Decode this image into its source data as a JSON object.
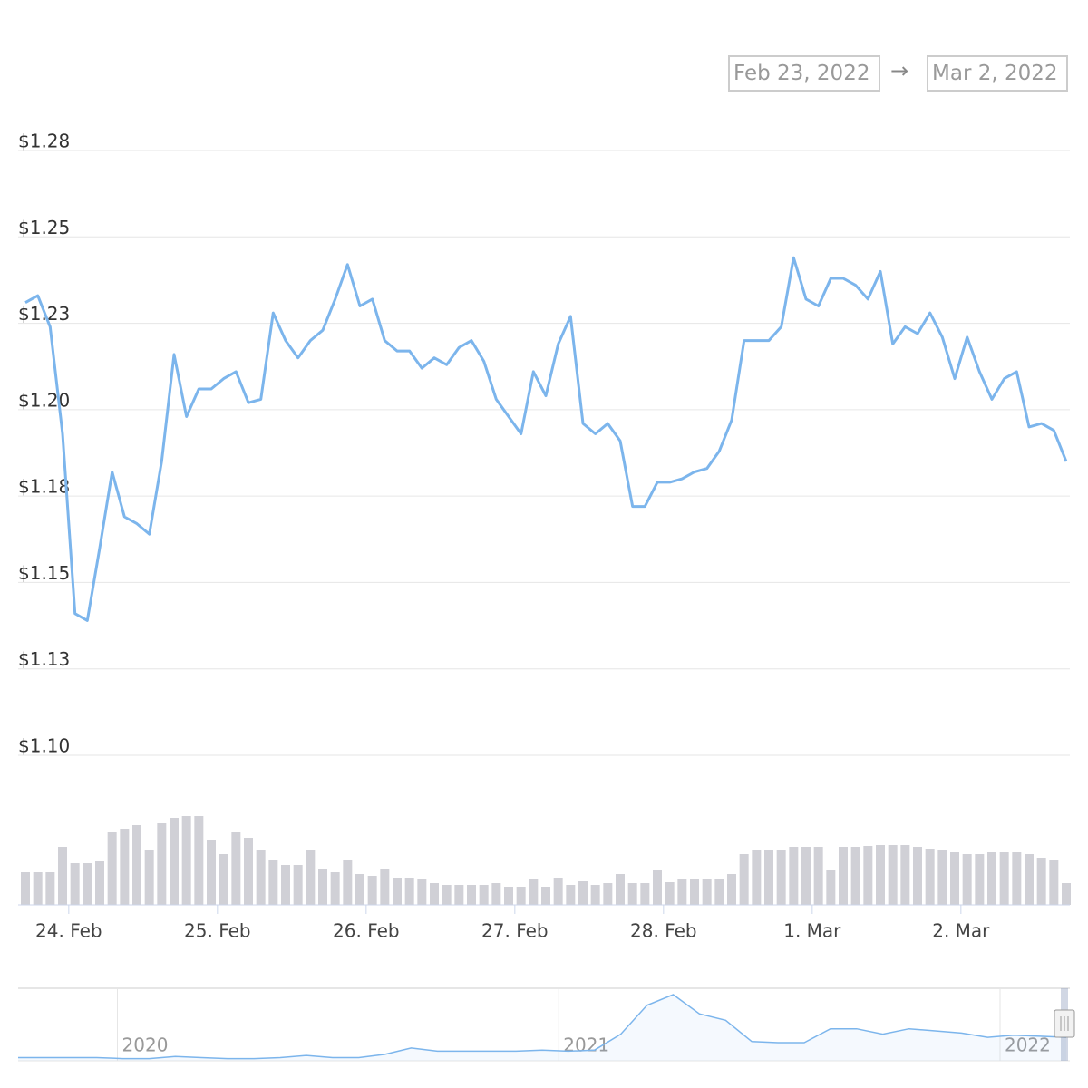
{
  "chart_data": {
    "type": "line",
    "date_range": {
      "from": "Feb 23, 2022",
      "separator": "→",
      "to": "Mar 2, 2022"
    },
    "series": [
      {
        "color": "#7cb5ec",
        "values": [
          1.231,
          1.233,
          1.224,
          1.193,
          1.141,
          1.139,
          1.16,
          1.182,
          1.169,
          1.167,
          1.164,
          1.185,
          1.216,
          1.198,
          1.206,
          1.206,
          1.209,
          1.211,
          1.202,
          1.203,
          1.228,
          1.22,
          1.215,
          1.22,
          1.223,
          1.232,
          1.242,
          1.23,
          1.232,
          1.22,
          1.217,
          1.217,
          1.212,
          1.215,
          1.213,
          1.218,
          1.22,
          1.214,
          1.203,
          1.198,
          1.193,
          1.211,
          1.204,
          1.219,
          1.227,
          1.196,
          1.193,
          1.196,
          1.191,
          1.172,
          1.172,
          1.179,
          1.179,
          1.18,
          1.182,
          1.183,
          1.188,
          1.197,
          1.22,
          1.22,
          1.22,
          1.224,
          1.244,
          1.232,
          1.23,
          1.238,
          1.238,
          1.236,
          1.232,
          1.24,
          1.219,
          1.224,
          1.222,
          1.228,
          1.221,
          1.209,
          1.221,
          1.211,
          1.203,
          1.209,
          1.211,
          1.195,
          1.196,
          1.194,
          1.185
        ]
      }
    ],
    "ylim": [
      1.1,
      1.275
    ],
    "yticks": [
      {
        "value": 1.1,
        "label": "$1.10"
      },
      {
        "value": 1.125,
        "label": "$1.13"
      },
      {
        "value": 1.15,
        "label": "$1.15"
      },
      {
        "value": 1.175,
        "label": "$1.18"
      },
      {
        "value": 1.2,
        "label": "$1.20"
      },
      {
        "value": 1.225,
        "label": "$1.23"
      },
      {
        "value": 1.25,
        "label": "$1.25"
      },
      {
        "value": 1.275,
        "label": "$1.28"
      }
    ],
    "xlim": [
      0,
      84
    ],
    "xticks": [
      {
        "value": 3.5,
        "label": "24. Feb"
      },
      {
        "value": 15.5,
        "label": "25. Feb"
      },
      {
        "value": 27.5,
        "label": "26. Feb"
      },
      {
        "value": 39.5,
        "label": "27. Feb"
      },
      {
        "value": 51.5,
        "label": "28. Feb"
      },
      {
        "value": 63.5,
        "label": "1. Mar"
      },
      {
        "value": 75.5,
        "label": "2. Mar"
      }
    ],
    "grid": true,
    "volume": {
      "type": "bar",
      "color": "#d0d0d6",
      "values": [
        36,
        36,
        36,
        64,
        46,
        46,
        48,
        80,
        84,
        88,
        60,
        90,
        96,
        98,
        98,
        72,
        56,
        80,
        74,
        60,
        50,
        44,
        44,
        60,
        40,
        36,
        50,
        34,
        32,
        40,
        30,
        30,
        28,
        24,
        22,
        22,
        22,
        22,
        24,
        20,
        20,
        28,
        20,
        30,
        22,
        26,
        22,
        24,
        34,
        24,
        24,
        38,
        25,
        28,
        28,
        28,
        28,
        34,
        56,
        60,
        60,
        60,
        64,
        64,
        64,
        38,
        64,
        64,
        65,
        66,
        66,
        66,
        64,
        62,
        60,
        58,
        56,
        56,
        58,
        58,
        58,
        56,
        52,
        50,
        24
      ]
    },
    "navigator": {
      "type": "area",
      "color": "#7cb5ec",
      "xlim": [
        2019.775,
        2022.15
      ],
      "xticks": [
        2020,
        2021,
        2022
      ],
      "values": [
        3,
        3,
        3,
        3,
        2,
        2,
        4,
        3,
        2,
        2,
        3,
        5,
        3,
        3,
        6,
        12,
        9,
        9,
        9,
        9,
        10,
        9,
        10,
        25,
        52,
        62,
        44,
        38,
        18,
        17,
        17,
        30,
        30,
        25,
        30,
        28,
        26,
        22,
        24,
        23,
        22
      ]
    }
  }
}
